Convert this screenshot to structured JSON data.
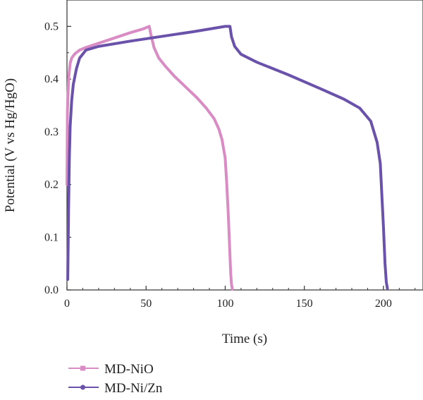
{
  "chart_data": {
    "type": "line",
    "xlabel": "Time (s)",
    "ylabel": "Potential (V vs Hg/HgO)",
    "xlim": [
      0,
      225
    ],
    "ylim": [
      0,
      0.55
    ],
    "xticks": [
      "0",
      "50",
      "100",
      "150",
      "200"
    ],
    "xtick_values": [
      0,
      50,
      100,
      150,
      200
    ],
    "yticks": [
      "0.0",
      "0.1",
      "0.2",
      "0.3",
      "0.4",
      "0.5"
    ],
    "ytick_values": [
      0,
      0.1,
      0.2,
      0.3,
      0.4,
      0.5
    ],
    "grid": false,
    "legend_position": "bottom-left",
    "series": [
      {
        "name": "MD-NiO",
        "color": "#d98bc4",
        "marker": "square",
        "x": [
          0,
          0.3,
          1,
          2,
          3,
          5,
          8,
          12,
          20,
          30,
          40,
          48,
          52,
          53,
          55,
          58,
          62,
          68,
          75,
          82,
          88,
          93,
          96,
          98,
          100,
          101,
          102,
          102.8,
          103.5,
          104,
          104.5
        ],
        "y": [
          0.2,
          0.34,
          0.4,
          0.43,
          0.44,
          0.448,
          0.455,
          0.46,
          0.468,
          0.478,
          0.488,
          0.495,
          0.5,
          0.485,
          0.46,
          0.44,
          0.425,
          0.405,
          0.385,
          0.365,
          0.345,
          0.325,
          0.305,
          0.285,
          0.25,
          0.2,
          0.14,
          0.08,
          0.03,
          0.01,
          0.002
        ]
      },
      {
        "name": "MD-Ni/Zn",
        "color": "#6a52ab",
        "marker": "circle",
        "x": [
          0.5,
          1,
          1.5,
          2,
          3,
          4,
          6,
          8,
          12,
          20,
          40,
          60,
          80,
          100,
          103,
          104,
          106,
          110,
          120,
          140,
          160,
          175,
          185,
          192,
          196,
          198,
          199,
          200,
          201,
          201.8,
          202.5
        ],
        "y": [
          0.02,
          0.15,
          0.25,
          0.31,
          0.36,
          0.39,
          0.42,
          0.44,
          0.455,
          0.462,
          0.472,
          0.481,
          0.49,
          0.5,
          0.5,
          0.48,
          0.462,
          0.447,
          0.432,
          0.408,
          0.382,
          0.362,
          0.345,
          0.32,
          0.28,
          0.24,
          0.18,
          0.12,
          0.05,
          0.015,
          0.003
        ]
      }
    ]
  }
}
